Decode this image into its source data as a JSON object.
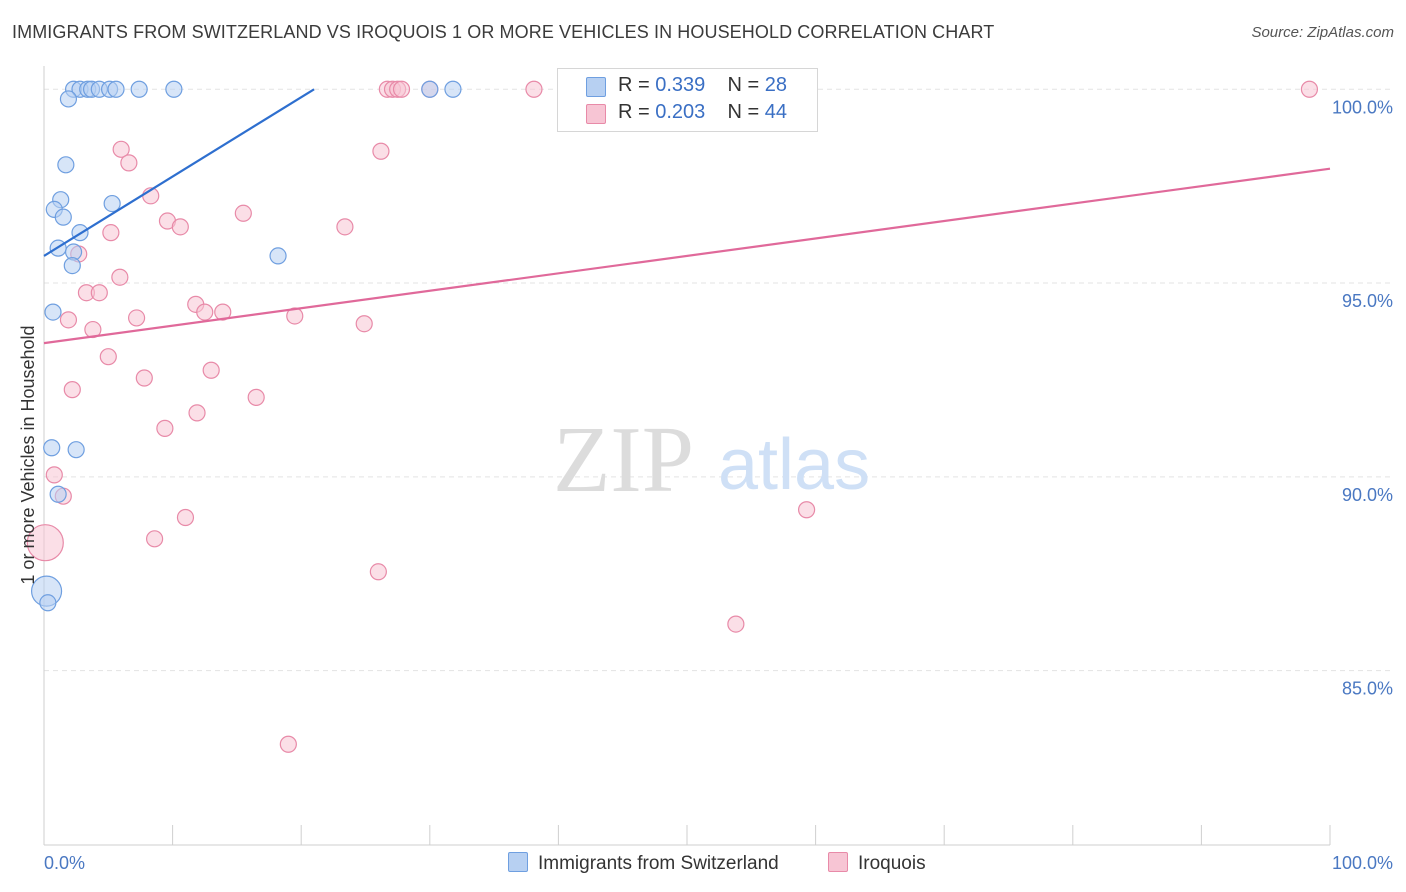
{
  "title": "IMMIGRANTS FROM SWITZERLAND VS IROQUOIS 1 OR MORE VEHICLES IN HOUSEHOLD CORRELATION CHART",
  "source": "Source: ZipAtlas.com",
  "watermark": {
    "zip": "ZIP",
    "atlas": "atlas"
  },
  "legend": {
    "rows": [
      {
        "r_label": "R =",
        "r_value": "0.339",
        "n_label": "N =",
        "n_value": "28"
      },
      {
        "r_label": "R =",
        "r_value": "0.203",
        "n_label": "N =",
        "n_value": "44"
      }
    ]
  },
  "colors": {
    "blue_fill": "#b7d0f2",
    "blue_stroke": "#6f9fe0",
    "blue_line": "#2e6fcf",
    "pink_fill": "#f7c5d4",
    "pink_stroke": "#e88aa8",
    "pink_line": "#e0699a",
    "grid": "#e3e3e3",
    "tick_text": "#4a78c2"
  },
  "chart_data": {
    "type": "scatter",
    "title": "IMMIGRANTS FROM SWITZERLAND VS IROQUOIS 1 OR MORE VEHICLES IN HOUSEHOLD CORRELATION CHART",
    "xlabel": "",
    "ylabel": "1 or more Vehicles in Household",
    "xlim": [
      0,
      100
    ],
    "ylim": [
      80.5,
      100.6
    ],
    "x_tick_labels": [
      "0.0%",
      "100.0%"
    ],
    "y_ticks": [
      {
        "value": 85,
        "label": "85.0%"
      },
      {
        "value": 90,
        "label": "90.0%"
      },
      {
        "value": 95,
        "label": "95.0%"
      },
      {
        "value": 100,
        "label": "100.0%"
      }
    ],
    "grid": true,
    "series": [
      {
        "name": "Immigrants from Switzerland",
        "color": "blue",
        "trend": {
          "x": [
            0.0,
            21.0
          ],
          "y": [
            95.7,
            100.0
          ]
        },
        "points": [
          {
            "x": 2.3,
            "y": 100.0
          },
          {
            "x": 2.8,
            "y": 100.0
          },
          {
            "x": 3.4,
            "y": 100.0
          },
          {
            "x": 3.7,
            "y": 100.0
          },
          {
            "x": 4.3,
            "y": 100.0
          },
          {
            "x": 5.1,
            "y": 100.0
          },
          {
            "x": 5.6,
            "y": 100.0
          },
          {
            "x": 7.4,
            "y": 100.0
          },
          {
            "x": 10.1,
            "y": 100.0
          },
          {
            "x": 31.8,
            "y": 100.0
          },
          {
            "x": 1.9,
            "y": 99.75
          },
          {
            "x": 1.7,
            "y": 98.05
          },
          {
            "x": 1.3,
            "y": 97.15
          },
          {
            "x": 5.3,
            "y": 97.05
          },
          {
            "x": 0.8,
            "y": 96.9
          },
          {
            "x": 1.5,
            "y": 96.7
          },
          {
            "x": 2.8,
            "y": 96.3
          },
          {
            "x": 1.1,
            "y": 95.9
          },
          {
            "x": 2.3,
            "y": 95.8
          },
          {
            "x": 18.2,
            "y": 95.7
          },
          {
            "x": 2.2,
            "y": 95.45
          },
          {
            "x": 0.7,
            "y": 94.25
          },
          {
            "x": 0.6,
            "y": 90.75
          },
          {
            "x": 2.5,
            "y": 90.7
          },
          {
            "x": 1.1,
            "y": 89.55
          },
          {
            "x": 0.2,
            "y": 87.05,
            "r": 15
          },
          {
            "x": 0.3,
            "y": 86.75
          },
          {
            "x": 30.0,
            "y": 100.0
          }
        ]
      },
      {
        "name": "Iroquois",
        "color": "pink",
        "trend": {
          "x": [
            0.0,
            100.0
          ],
          "y": [
            93.45,
            97.95
          ]
        },
        "points": [
          {
            "x": 26.7,
            "y": 100.0
          },
          {
            "x": 27.1,
            "y": 100.0
          },
          {
            "x": 27.5,
            "y": 100.0
          },
          {
            "x": 30.0,
            "y": 100.0
          },
          {
            "x": 38.1,
            "y": 100.0
          },
          {
            "x": 98.4,
            "y": 100.0
          },
          {
            "x": 6.0,
            "y": 98.45
          },
          {
            "x": 26.2,
            "y": 98.4
          },
          {
            "x": 6.6,
            "y": 98.1
          },
          {
            "x": 8.3,
            "y": 97.25
          },
          {
            "x": 15.5,
            "y": 96.8
          },
          {
            "x": 9.6,
            "y": 96.6
          },
          {
            "x": 10.6,
            "y": 96.45
          },
          {
            "x": 23.4,
            "y": 96.45
          },
          {
            "x": 5.2,
            "y": 96.3
          },
          {
            "x": 2.7,
            "y": 95.75
          },
          {
            "x": 5.9,
            "y": 95.15
          },
          {
            "x": 3.3,
            "y": 94.75
          },
          {
            "x": 4.3,
            "y": 94.75
          },
          {
            "x": 11.8,
            "y": 94.45
          },
          {
            "x": 12.5,
            "y": 94.25
          },
          {
            "x": 13.9,
            "y": 94.25
          },
          {
            "x": 19.5,
            "y": 94.15
          },
          {
            "x": 7.2,
            "y": 94.1
          },
          {
            "x": 1.9,
            "y": 94.05
          },
          {
            "x": 24.9,
            "y": 93.95
          },
          {
            "x": 3.8,
            "y": 93.8
          },
          {
            "x": 5.0,
            "y": 93.1
          },
          {
            "x": 13.0,
            "y": 92.75
          },
          {
            "x": 7.8,
            "y": 92.55
          },
          {
            "x": 2.2,
            "y": 92.25
          },
          {
            "x": 16.5,
            "y": 92.05
          },
          {
            "x": 11.9,
            "y": 91.65
          },
          {
            "x": 9.4,
            "y": 91.25
          },
          {
            "x": 0.8,
            "y": 90.05
          },
          {
            "x": 1.5,
            "y": 89.5
          },
          {
            "x": 11.0,
            "y": 88.95
          },
          {
            "x": 59.3,
            "y": 89.15
          },
          {
            "x": 0.1,
            "y": 88.3,
            "r": 18
          },
          {
            "x": 8.6,
            "y": 88.4
          },
          {
            "x": 26.0,
            "y": 87.55
          },
          {
            "x": 53.8,
            "y": 86.2
          },
          {
            "x": 19.0,
            "y": 83.1
          },
          {
            "x": 27.8,
            "y": 100.0
          }
        ]
      }
    ]
  }
}
